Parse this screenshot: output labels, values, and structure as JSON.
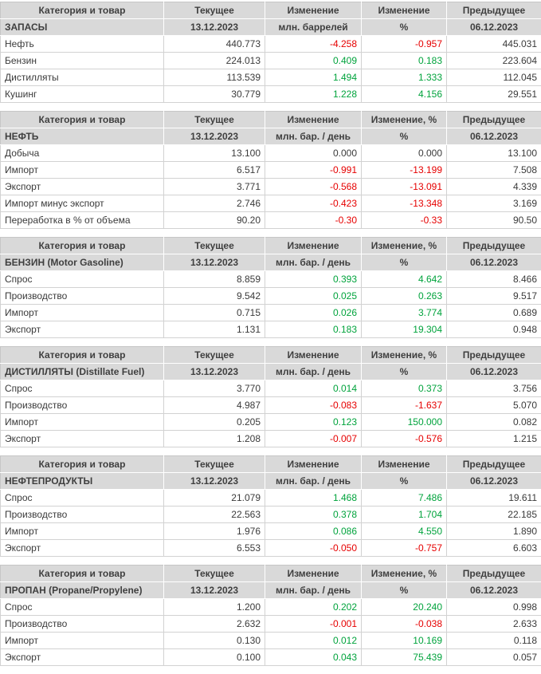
{
  "report": {
    "current_date": "13.12.2023",
    "previous_date": "06.12.2023"
  },
  "colors": {
    "header_bg": "#d9d9d9",
    "header_text": "#3f3f3f",
    "data_text": "#3a3a3a",
    "positive": "#00a33c",
    "negative": "#e60000"
  },
  "tables": [
    {
      "key": "inventories",
      "title": "ЗАПАСЫ",
      "col1_label": "Категория и товар",
      "current_label": "Текущее",
      "current_date": "13.12.2023",
      "change_label": "Изменение",
      "change_unit": "млн. баррелей",
      "change_pct_label": "Изменение",
      "change_pct_unit": "%",
      "prev_label": "Предыдущее",
      "prev_date": "06.12.2023",
      "rows": [
        {
          "label": "Нефть",
          "current": "440.773",
          "change": "-4.258",
          "change_pct": "-0.957",
          "previous": "445.031"
        },
        {
          "label": "Бензин",
          "current": "224.013",
          "change": "0.409",
          "change_pct": "0.183",
          "previous": "223.604"
        },
        {
          "label": "Дистилляты",
          "current": "113.539",
          "change": "1.494",
          "change_pct": "1.333",
          "previous": "112.045"
        },
        {
          "label": "Кушинг",
          "current": "30.779",
          "change": "1.228",
          "change_pct": "4.156",
          "previous": "29.551"
        }
      ]
    },
    {
      "key": "crude-oil",
      "title": "НЕФТЬ",
      "col1_label": "Категория и товар",
      "current_label": "Текущее",
      "current_date": "13.12.2023",
      "change_label": "Изменение",
      "change_unit": "млн. бар. / день",
      "change_pct_label": "Изменение, %",
      "change_pct_unit": "%",
      "prev_label": "Предыдущее",
      "prev_date": "06.12.2023",
      "rows": [
        {
          "label": "Добыча",
          "current": "13.100",
          "change": "0.000",
          "change_pct": "0.000",
          "previous": "13.100"
        },
        {
          "label": "Импорт",
          "current": "6.517",
          "change": "-0.991",
          "change_pct": "-13.199",
          "previous": "7.508"
        },
        {
          "label": "Экспорт",
          "current": "3.771",
          "change": "-0.568",
          "change_pct": "-13.091",
          "previous": "4.339"
        },
        {
          "label": "Импорт минус экспорт",
          "current": "2.746",
          "change": "-0.423",
          "change_pct": "-13.348",
          "previous": "3.169"
        },
        {
          "label": "Переработка в % от объема",
          "current": "90.20",
          "change": "-0.30",
          "change_pct": "-0.33",
          "previous": "90.50"
        }
      ]
    },
    {
      "key": "gasoline",
      "title": "БЕНЗИН (Motor Gasoline)",
      "col1_label": "Категория и товар",
      "current_label": "Текущее",
      "current_date": "13.12.2023",
      "change_label": "Изменение",
      "change_unit": "млн. бар. / день",
      "change_pct_label": "Изменение, %",
      "change_pct_unit": "%",
      "prev_label": "Предыдущее",
      "prev_date": "06.12.2023",
      "rows": [
        {
          "label": "Спрос",
          "current": "8.859",
          "change": "0.393",
          "change_pct": "4.642",
          "previous": "8.466"
        },
        {
          "label": "Производство",
          "current": "9.542",
          "change": "0.025",
          "change_pct": "0.263",
          "previous": "9.517"
        },
        {
          "label": "Импорт",
          "current": "0.715",
          "change": "0.026",
          "change_pct": "3.774",
          "previous": "0.689"
        },
        {
          "label": "Экспорт",
          "current": "1.131",
          "change": "0.183",
          "change_pct": "19.304",
          "previous": "0.948"
        }
      ]
    },
    {
      "key": "distillates",
      "title": "ДИСТИЛЛЯТЫ (Distillate Fuel)",
      "col1_label": "Категория и товар",
      "current_label": "Текущее",
      "current_date": "13.12.2023",
      "change_label": "Изменение",
      "change_unit": "млн. бар. / день",
      "change_pct_label": "Изменение, %",
      "change_pct_unit": "%",
      "prev_label": "Предыдущее",
      "prev_date": "06.12.2023",
      "rows": [
        {
          "label": "Спрос",
          "current": "3.770",
          "change": "0.014",
          "change_pct": "0.373",
          "previous": "3.756"
        },
        {
          "label": "Производство",
          "current": "4.987",
          "change": "-0.083",
          "change_pct": "-1.637",
          "previous": "5.070"
        },
        {
          "label": "Импорт",
          "current": "0.205",
          "change": "0.123",
          "change_pct": "150.000",
          "previous": "0.082"
        },
        {
          "label": "Экспорт",
          "current": "1.208",
          "change": "-0.007",
          "change_pct": "-0.576",
          "previous": "1.215"
        }
      ]
    },
    {
      "key": "petroleum-products",
      "title": "НЕФТЕПРОДУКТЫ",
      "col1_label": "Категория и товар",
      "current_label": "Текущее",
      "current_date": "13.12.2023",
      "change_label": "Изменение",
      "change_unit": "млн. бар. / день",
      "change_pct_label": "Изменение",
      "change_pct_unit": "%",
      "prev_label": "Предыдущее",
      "prev_date": "06.12.2023",
      "rows": [
        {
          "label": "Спрос",
          "current": "21.079",
          "change": "1.468",
          "change_pct": "7.486",
          "previous": "19.611"
        },
        {
          "label": "Производство",
          "current": "22.563",
          "change": "0.378",
          "change_pct": "1.704",
          "previous": "22.185"
        },
        {
          "label": "Импорт",
          "current": "1.976",
          "change": "0.086",
          "change_pct": "4.550",
          "previous": "1.890"
        },
        {
          "label": "Экспорт",
          "current": "6.553",
          "change": "-0.050",
          "change_pct": "-0.757",
          "previous": "6.603"
        }
      ]
    },
    {
      "key": "propane",
      "title": "ПРОПАН (Propane/Propylene)",
      "col1_label": "Категория и товар",
      "current_label": "Текущее",
      "current_date": "13.12.2023",
      "change_label": "Изменение",
      "change_unit": "млн. бар. / день",
      "change_pct_label": "Изменение, %",
      "change_pct_unit": "%",
      "prev_label": "Предыдущее",
      "prev_date": "06.12.2023",
      "rows": [
        {
          "label": "Спрос",
          "current": "1.200",
          "change": "0.202",
          "change_pct": "20.240",
          "previous": "0.998"
        },
        {
          "label": "Производство",
          "current": "2.632",
          "change": "-0.001",
          "change_pct": "-0.038",
          "previous": "2.633"
        },
        {
          "label": "Импорт",
          "current": "0.130",
          "change": "0.012",
          "change_pct": "10.169",
          "previous": "0.118"
        },
        {
          "label": "Экспорт",
          "current": "0.100",
          "change": "0.043",
          "change_pct": "75.439",
          "previous": "0.057"
        }
      ]
    }
  ]
}
